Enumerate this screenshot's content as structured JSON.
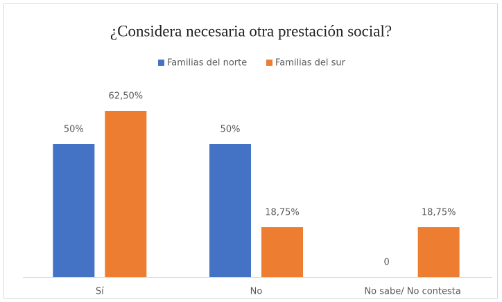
{
  "chart_data": {
    "type": "bar",
    "title": "¿Considera necesaria otra prestación social?",
    "categories": [
      "Sí",
      "No",
      "No sabe/ No contesta"
    ],
    "series": [
      {
        "name": "Familias del norte",
        "color": "#4472c4",
        "values": [
          50,
          50,
          0
        ],
        "value_labels": [
          "50%",
          "50%",
          "0"
        ]
      },
      {
        "name": "Familias del sur",
        "color": "#ed7d31",
        "values": [
          62.5,
          18.75,
          18.75
        ],
        "value_labels": [
          "62,50%",
          "18,75%",
          "18,75%"
        ]
      }
    ],
    "legend": "top"
  }
}
